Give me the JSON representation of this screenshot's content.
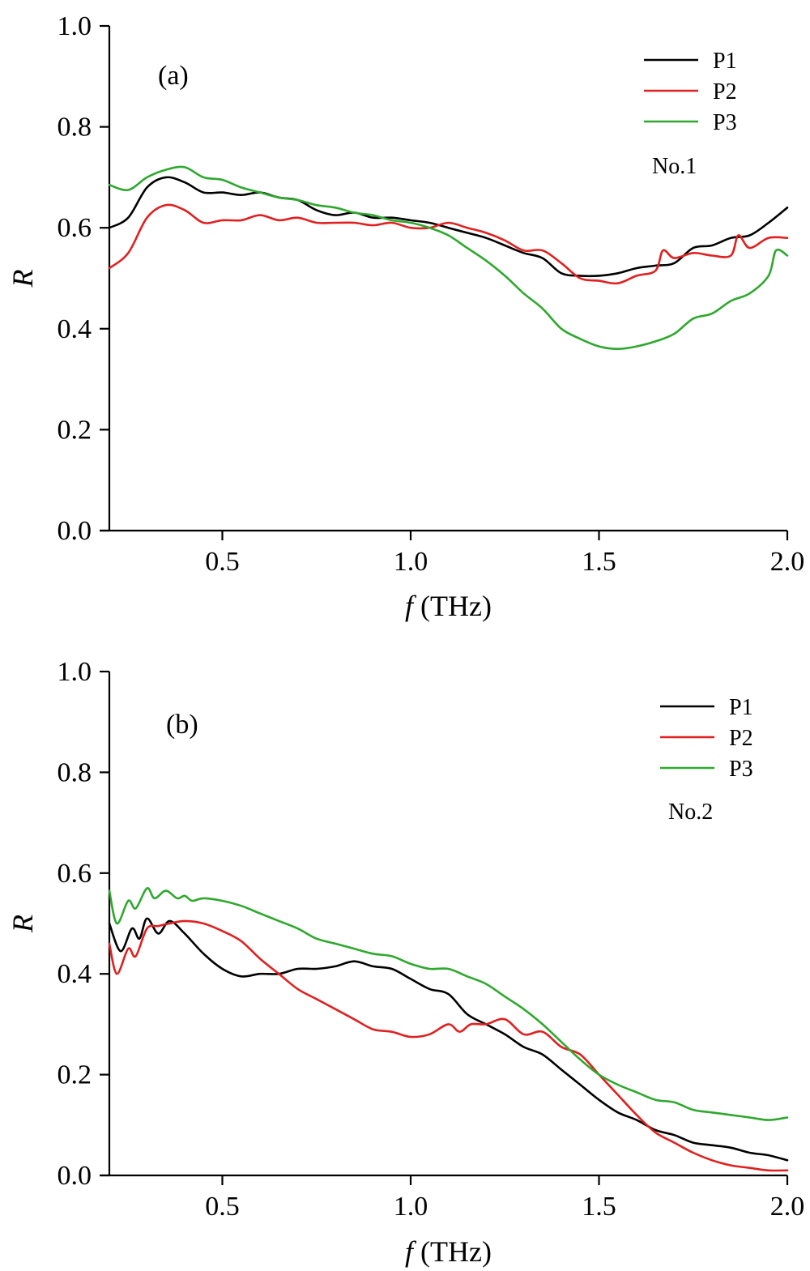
{
  "chart_data": [
    {
      "type": "line",
      "panel_label": "(a)",
      "sample_label": "No.1",
      "xlabel_italic": "f",
      "xlabel_unit": "(THz)",
      "ylabel": "R",
      "xlim": [
        0.2,
        2.0
      ],
      "ylim": [
        0.0,
        1.0
      ],
      "xticks": [
        0.5,
        1.0,
        1.5,
        2.0
      ],
      "xtick_labels": [
        "0.5",
        "1.0",
        "1.5",
        "2.0"
      ],
      "yticks": [
        0.0,
        0.2,
        0.4,
        0.6,
        0.8,
        1.0
      ],
      "ytick_labels": [
        "0.0",
        "0.2",
        "0.4",
        "0.6",
        "0.8",
        "1.0"
      ],
      "legend_position": "top-right",
      "series": [
        {
          "name": "P1",
          "color": "#000000",
          "x": [
            0.2,
            0.25,
            0.3,
            0.35,
            0.4,
            0.45,
            0.5,
            0.55,
            0.6,
            0.65,
            0.7,
            0.75,
            0.8,
            0.85,
            0.9,
            0.95,
            1.0,
            1.05,
            1.1,
            1.15,
            1.2,
            1.25,
            1.3,
            1.35,
            1.4,
            1.45,
            1.5,
            1.55,
            1.6,
            1.65,
            1.7,
            1.75,
            1.8,
            1.85,
            1.9,
            1.95,
            2.0
          ],
          "y": [
            0.6,
            0.62,
            0.68,
            0.7,
            0.69,
            0.67,
            0.67,
            0.665,
            0.67,
            0.66,
            0.655,
            0.635,
            0.625,
            0.63,
            0.62,
            0.62,
            0.615,
            0.61,
            0.6,
            0.59,
            0.58,
            0.565,
            0.55,
            0.54,
            0.51,
            0.505,
            0.505,
            0.51,
            0.52,
            0.525,
            0.53,
            0.56,
            0.565,
            0.58,
            0.585,
            0.61,
            0.64
          ]
        },
        {
          "name": "P2",
          "color": "#e02020",
          "x": [
            0.2,
            0.25,
            0.3,
            0.35,
            0.4,
            0.45,
            0.5,
            0.55,
            0.6,
            0.65,
            0.7,
            0.75,
            0.8,
            0.85,
            0.9,
            0.95,
            1.0,
            1.05,
            1.1,
            1.15,
            1.2,
            1.25,
            1.3,
            1.35,
            1.4,
            1.45,
            1.5,
            1.55,
            1.6,
            1.65,
            1.67,
            1.7,
            1.75,
            1.8,
            1.85,
            1.87,
            1.9,
            1.95,
            2.0
          ],
          "y": [
            0.52,
            0.55,
            0.62,
            0.645,
            0.635,
            0.61,
            0.615,
            0.615,
            0.625,
            0.615,
            0.62,
            0.61,
            0.61,
            0.61,
            0.605,
            0.61,
            0.6,
            0.6,
            0.61,
            0.6,
            0.59,
            0.575,
            0.555,
            0.555,
            0.53,
            0.5,
            0.495,
            0.49,
            0.505,
            0.515,
            0.555,
            0.54,
            0.55,
            0.545,
            0.545,
            0.585,
            0.56,
            0.58,
            0.58
          ]
        },
        {
          "name": "P3",
          "color": "#2ea82e",
          "x": [
            0.2,
            0.25,
            0.3,
            0.35,
            0.4,
            0.45,
            0.5,
            0.55,
            0.6,
            0.65,
            0.7,
            0.75,
            0.8,
            0.85,
            0.9,
            0.95,
            1.0,
            1.05,
            1.1,
            1.15,
            1.2,
            1.25,
            1.3,
            1.35,
            1.4,
            1.45,
            1.5,
            1.55,
            1.6,
            1.65,
            1.7,
            1.75,
            1.8,
            1.85,
            1.9,
            1.95,
            1.97,
            2.0
          ],
          "y": [
            0.685,
            0.675,
            0.7,
            0.715,
            0.72,
            0.7,
            0.695,
            0.68,
            0.67,
            0.66,
            0.655,
            0.645,
            0.64,
            0.63,
            0.625,
            0.615,
            0.61,
            0.6,
            0.585,
            0.56,
            0.535,
            0.505,
            0.47,
            0.44,
            0.4,
            0.38,
            0.365,
            0.36,
            0.365,
            0.375,
            0.39,
            0.42,
            0.43,
            0.455,
            0.47,
            0.505,
            0.555,
            0.545
          ]
        }
      ]
    },
    {
      "type": "line",
      "panel_label": "(b)",
      "sample_label": "No.2",
      "xlabel_italic": "f",
      "xlabel_unit": "(THz)",
      "ylabel": "R",
      "xlim": [
        0.2,
        2.0
      ],
      "ylim": [
        0.0,
        1.0
      ],
      "xticks": [
        0.5,
        1.0,
        1.5,
        2.0
      ],
      "xtick_labels": [
        "0.5",
        "1.0",
        "1.5",
        "2.0"
      ],
      "yticks": [
        0.0,
        0.2,
        0.4,
        0.6,
        0.8,
        1.0
      ],
      "ytick_labels": [
        "0.0",
        "0.2",
        "0.4",
        "0.6",
        "0.8",
        "1.0"
      ],
      "legend_position": "top-right",
      "series": [
        {
          "name": "P1",
          "color": "#000000",
          "x": [
            0.2,
            0.23,
            0.26,
            0.28,
            0.3,
            0.33,
            0.36,
            0.4,
            0.45,
            0.5,
            0.55,
            0.6,
            0.65,
            0.7,
            0.75,
            0.8,
            0.85,
            0.9,
            0.95,
            1.0,
            1.05,
            1.1,
            1.15,
            1.2,
            1.25,
            1.3,
            1.35,
            1.4,
            1.45,
            1.5,
            1.55,
            1.6,
            1.65,
            1.7,
            1.75,
            1.8,
            1.85,
            1.9,
            1.95,
            2.0
          ],
          "y": [
            0.5,
            0.445,
            0.49,
            0.47,
            0.51,
            0.48,
            0.505,
            0.48,
            0.44,
            0.41,
            0.395,
            0.4,
            0.4,
            0.41,
            0.41,
            0.415,
            0.425,
            0.415,
            0.41,
            0.39,
            0.37,
            0.36,
            0.32,
            0.3,
            0.28,
            0.255,
            0.24,
            0.21,
            0.18,
            0.15,
            0.125,
            0.11,
            0.09,
            0.08,
            0.065,
            0.06,
            0.055,
            0.045,
            0.04,
            0.03
          ]
        },
        {
          "name": "P2",
          "color": "#e02020",
          "x": [
            0.2,
            0.22,
            0.25,
            0.27,
            0.3,
            0.33,
            0.36,
            0.4,
            0.45,
            0.5,
            0.55,
            0.6,
            0.65,
            0.7,
            0.75,
            0.8,
            0.85,
            0.9,
            0.95,
            1.0,
            1.05,
            1.1,
            1.13,
            1.16,
            1.2,
            1.25,
            1.3,
            1.35,
            1.4,
            1.45,
            1.5,
            1.55,
            1.6,
            1.65,
            1.7,
            1.75,
            1.8,
            1.85,
            1.9,
            1.95,
            2.0
          ],
          "y": [
            0.46,
            0.4,
            0.45,
            0.435,
            0.49,
            0.495,
            0.5,
            0.505,
            0.5,
            0.485,
            0.465,
            0.43,
            0.4,
            0.37,
            0.35,
            0.33,
            0.31,
            0.29,
            0.285,
            0.275,
            0.28,
            0.3,
            0.285,
            0.3,
            0.3,
            0.31,
            0.28,
            0.285,
            0.255,
            0.24,
            0.2,
            0.16,
            0.12,
            0.085,
            0.065,
            0.045,
            0.03,
            0.02,
            0.015,
            0.01,
            0.01
          ]
        },
        {
          "name": "P3",
          "color": "#2ea82e",
          "x": [
            0.2,
            0.22,
            0.25,
            0.27,
            0.3,
            0.32,
            0.35,
            0.38,
            0.4,
            0.42,
            0.45,
            0.5,
            0.55,
            0.6,
            0.65,
            0.7,
            0.75,
            0.8,
            0.85,
            0.9,
            0.95,
            1.0,
            1.05,
            1.1,
            1.15,
            1.2,
            1.25,
            1.3,
            1.35,
            1.4,
            1.45,
            1.5,
            1.55,
            1.6,
            1.65,
            1.7,
            1.75,
            1.8,
            1.85,
            1.9,
            1.95,
            2.0
          ],
          "y": [
            0.565,
            0.5,
            0.545,
            0.53,
            0.57,
            0.55,
            0.565,
            0.55,
            0.555,
            0.545,
            0.55,
            0.545,
            0.535,
            0.52,
            0.505,
            0.49,
            0.47,
            0.46,
            0.45,
            0.44,
            0.435,
            0.42,
            0.41,
            0.41,
            0.395,
            0.38,
            0.355,
            0.33,
            0.3,
            0.265,
            0.23,
            0.2,
            0.18,
            0.165,
            0.15,
            0.145,
            0.13,
            0.125,
            0.12,
            0.115,
            0.11,
            0.115
          ]
        }
      ]
    }
  ]
}
